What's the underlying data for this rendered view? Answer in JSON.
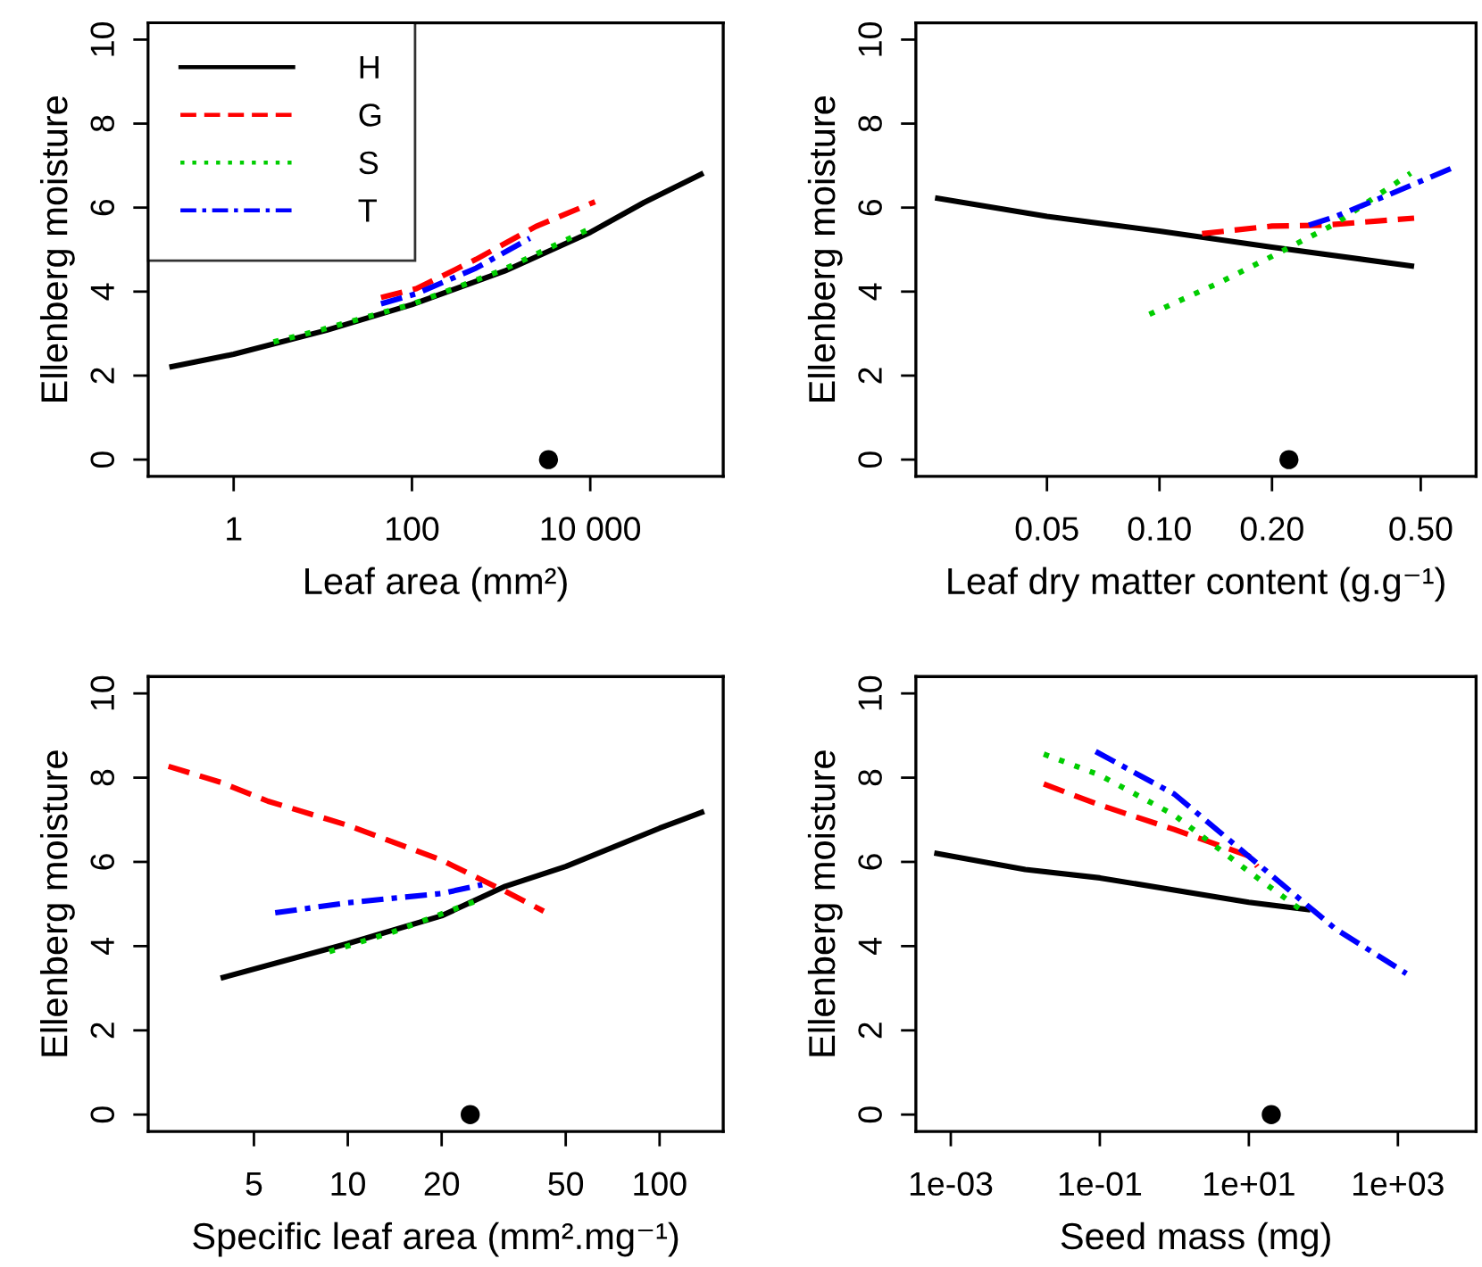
{
  "chart_data": [
    {
      "type": "line",
      "xlabel": "Leaf area (mm²)",
      "ylabel": "Ellenberg moisture",
      "log": "x",
      "xlim": [
        0.11,
        310000
      ],
      "xticks": [
        1,
        100,
        {
          "value": 10000,
          "label": "10 000"
        }
      ],
      "ylim": [
        -0.4,
        10.4
      ],
      "yticks": [
        0,
        2,
        4,
        6,
        8,
        10
      ],
      "legend": "top left",
      "series": [
        {
          "name": "H",
          "color": "#000000",
          "line_style": "solid",
          "x": [
            0.19,
            1,
            11,
            100,
            1100,
            10000,
            40000,
            186000
          ],
          "values": [
            2.2,
            2.51,
            3.08,
            3.69,
            4.49,
            5.41,
            6.12,
            6.82
          ]
        },
        {
          "name": "G",
          "color": "#ff0000",
          "line_style": "dashed",
          "x": [
            45,
            112,
            525,
            2450,
            11300
          ],
          "values": [
            3.86,
            4.07,
            4.77,
            5.55,
            6.14
          ]
        },
        {
          "name": "S",
          "color": "#00cd00",
          "line_style": "dotted",
          "x": [
            2.8,
            10,
            100,
            1000,
            10000
          ],
          "values": [
            2.8,
            3.1,
            3.7,
            4.5,
            5.5
          ]
        },
        {
          "name": "T",
          "color": "#0000ff",
          "line_style": "dashdot",
          "x": [
            45,
            112,
            525,
            2100
          ],
          "values": [
            3.71,
            3.95,
            4.56,
            5.27
          ]
        },
        {
          "type": "scatter",
          "marker": "circle",
          "color": "#000000",
          "x": [
            3400
          ],
          "values": [
            0
          ]
        }
      ]
    },
    {
      "type": "line",
      "xlabel": "Leaf dry matter content (g.g⁻¹)",
      "ylabel": "Ellenberg moisture",
      "log": "x",
      "xlim": [
        0.0223,
        0.703
      ],
      "xticks": [
        {
          "value": 0.05,
          "label": "0.05"
        },
        {
          "value": 0.1,
          "label": "0.10"
        },
        {
          "value": 0.2,
          "label": "0.20"
        },
        {
          "value": 0.5,
          "label": "0.50"
        }
      ],
      "ylim": [
        -0.4,
        10.4
      ],
      "yticks": [
        0,
        2,
        4,
        6,
        8,
        10
      ],
      "series": [
        {
          "color": "#000000",
          "line_style": "solid",
          "x": [
            0.0251,
            0.05,
            0.1,
            0.2,
            0.48
          ],
          "values": [
            6.23,
            5.79,
            5.44,
            5.06,
            4.6
          ]
        },
        {
          "color": "#ff0000",
          "line_style": "dashed",
          "x": [
            0.13,
            0.2,
            0.275,
            0.48
          ],
          "values": [
            5.38,
            5.56,
            5.58,
            5.75
          ]
        },
        {
          "color": "#00cd00",
          "line_style": "dotted",
          "x": [
            0.094,
            0.142,
            0.2,
            0.296,
            0.47
          ],
          "values": [
            3.46,
            4.18,
            4.84,
            5.62,
            6.82
          ]
        },
        {
          "color": "#0000ff",
          "line_style": "dashdot",
          "x": [
            0.251,
            0.296,
            0.427,
            0.628
          ],
          "values": [
            5.58,
            5.79,
            6.37,
            7.0
          ]
        },
        {
          "type": "scatter",
          "marker": "circle",
          "color": "#000000",
          "x": [
            0.222
          ],
          "values": [
            0
          ]
        }
      ]
    },
    {
      "type": "line",
      "xlabel": "Specific leaf area (mm².mg⁻¹)",
      "ylabel": "Ellenberg moisture",
      "log": "x",
      "xlim": [
        2.29,
        160
      ],
      "xticks": [
        5,
        10,
        20,
        50,
        100
      ],
      "ylim": [
        -0.4,
        10.4
      ],
      "yticks": [
        0,
        2,
        4,
        6,
        8,
        10
      ],
      "series": [
        {
          "color": "#000000",
          "line_style": "solid",
          "x": [
            3.91,
            10,
            20,
            32,
            50,
            100,
            139
          ],
          "values": [
            3.24,
            4.06,
            4.72,
            5.42,
            5.89,
            6.8,
            7.2
          ]
        },
        {
          "color": "#ff0000",
          "line_style": "dashed",
          "x": [
            2.66,
            3.91,
            5.55,
            10,
            20,
            32,
            42.5
          ],
          "values": [
            8.27,
            7.89,
            7.44,
            6.87,
            6.04,
            5.3,
            4.83
          ]
        },
        {
          "color": "#00cd00",
          "line_style": "dotted",
          "x": [
            8.73,
            14,
            25.8
          ],
          "values": [
            3.87,
            4.34,
            5.07
          ]
        },
        {
          "color": "#0000ff",
          "line_style": "dashdot",
          "x": [
            5.85,
            10,
            20,
            27
          ],
          "values": [
            4.79,
            5.03,
            5.25,
            5.46
          ]
        },
        {
          "type": "scatter",
          "marker": "circle",
          "color": "#000000",
          "x": [
            24.7
          ],
          "values": [
            0
          ]
        }
      ]
    },
    {
      "type": "line",
      "xlabel": "Seed mass (mg)",
      "ylabel": "Ellenberg moisture",
      "log": "x",
      "xlim": [
        0.00034,
        11200
      ],
      "xticks": [
        {
          "value": 0.001,
          "label": "1e-03"
        },
        {
          "value": 0.1,
          "label": "1e-01"
        },
        {
          "value": 10,
          "label": "1e+01"
        },
        {
          "value": 1000,
          "label": "1e+03"
        }
      ],
      "ylim": [
        -0.4,
        10.4
      ],
      "yticks": [
        0,
        2,
        4,
        6,
        8,
        10
      ],
      "series": [
        {
          "color": "#000000",
          "line_style": "solid",
          "x": [
            0.0006,
            0.01,
            0.1,
            10,
            67
          ],
          "values": [
            6.21,
            5.82,
            5.62,
            5.04,
            4.86
          ]
        },
        {
          "color": "#ff0000",
          "line_style": "dashed",
          "x": [
            0.0177,
            0.1,
            1,
            10,
            13
          ],
          "values": [
            7.85,
            7.35,
            6.77,
            6.14,
            5.89
          ]
        },
        {
          "color": "#00cd00",
          "line_style": "dotted",
          "x": [
            0.0177,
            0.1,
            1,
            10,
            57
          ],
          "values": [
            8.56,
            8.06,
            7.11,
            5.77,
            4.79
          ]
        },
        {
          "color": "#0000ff",
          "line_style": "dashdot",
          "x": [
            0.088,
            1,
            10,
            145,
            1300
          ],
          "values": [
            8.62,
            7.61,
            6.13,
            4.41,
            3.35
          ]
        },
        {
          "type": "scatter",
          "marker": "circle",
          "color": "#000000",
          "x": [
            20
          ],
          "values": [
            0
          ]
        }
      ]
    }
  ]
}
